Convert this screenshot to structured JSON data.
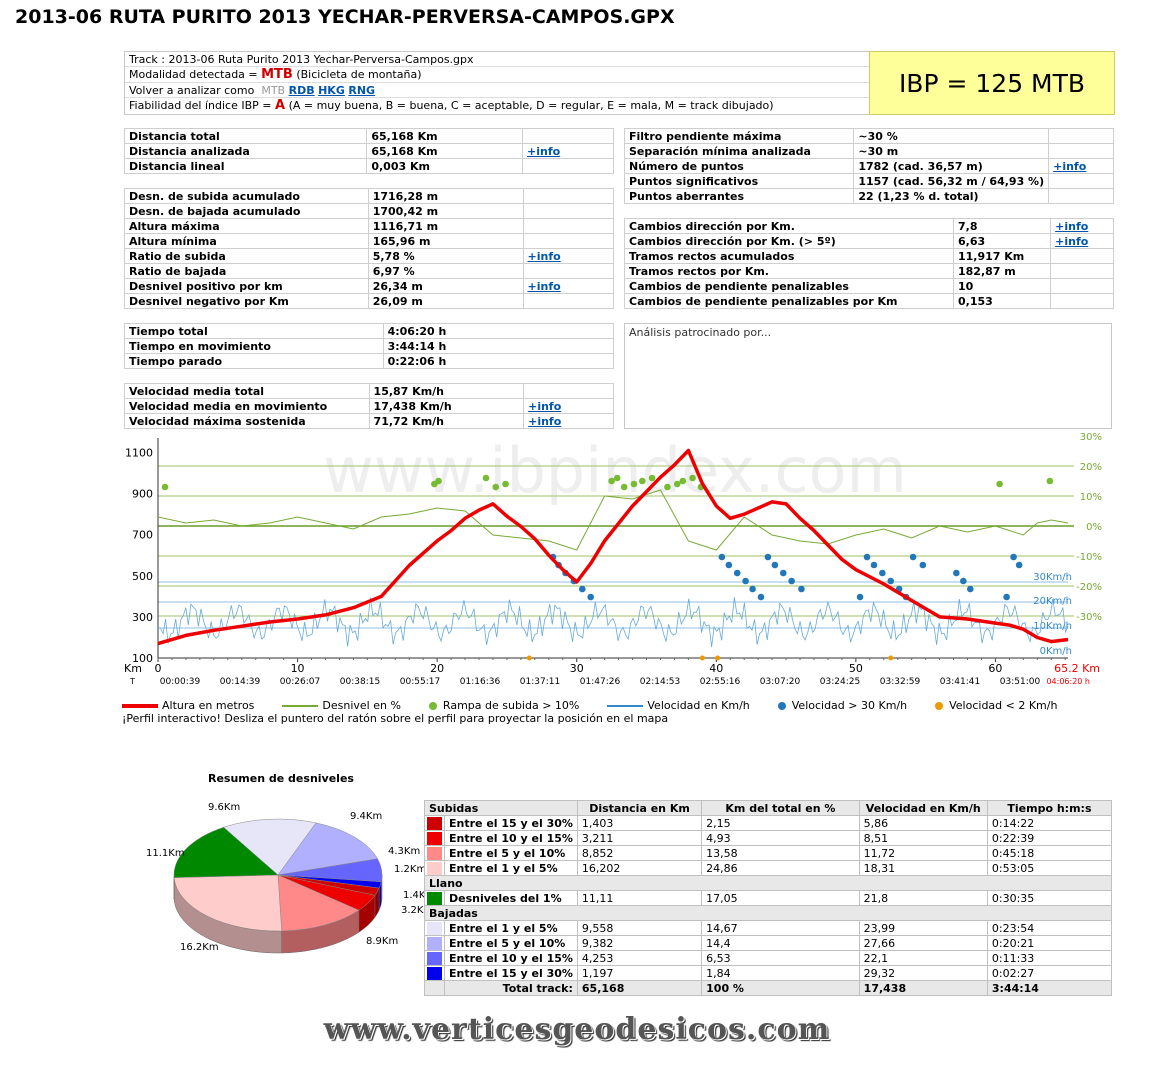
{
  "title": "2013-06 RUTA PURITO 2013 YECHAR-PERVERSA-CAMPOS.GPX",
  "track_info": {
    "track_label": "Track : 2013-06 Ruta Purito 2013 Yechar-Perversa-Campos.gpx",
    "modalidad_label": "Modalidad detectada = ",
    "modalidad_value": "MTB",
    "modalidad_desc": "(Bicicleta de montaña)",
    "volver_label": "Volver a analizar como",
    "volver_current": "MTB",
    "volver_links": [
      "RDB",
      "HKG",
      "RNG"
    ],
    "fiabilidad_label": "Fiabilidad del índice IBP = ",
    "fiabilidad_value": "A",
    "fiabilidad_desc": "(A = muy buena, B = buena, C = aceptable, D = regular, E = mala, M = track dibujado)"
  },
  "ibp": "IBP = 125 MTB",
  "more_link": "+info",
  "distance_rows": [
    {
      "label": "Distancia total",
      "value": "65,168 Km",
      "link": ""
    },
    {
      "label": "Distancia analizada",
      "value": "65,168 Km",
      "link": "+info"
    },
    {
      "label": "Distancia lineal",
      "value": "0,003 Km",
      "link": ""
    }
  ],
  "elevation_rows": [
    {
      "label": "Desn. de subida acumulado",
      "value": "1716,28 m",
      "link": ""
    },
    {
      "label": "Desn. de bajada acumulado",
      "value": "1700,42 m",
      "link": ""
    },
    {
      "label": "Altura máxima",
      "value": "1116,71 m",
      "link": ""
    },
    {
      "label": "Altura mínima",
      "value": "165,96 m",
      "link": ""
    },
    {
      "label": "Ratio de subida",
      "value": "5,78 %",
      "link": "+info"
    },
    {
      "label": "Ratio de bajada",
      "value": "6,97 %",
      "link": ""
    },
    {
      "label": "Desnivel positivo por km",
      "value": "26,34 m",
      "link": "+info"
    },
    {
      "label": "Desnivel negativo por Km",
      "value": "26,09 m",
      "link": ""
    }
  ],
  "time_rows": [
    {
      "label": "Tiempo total",
      "value": "4:06:20 h"
    },
    {
      "label": "Tiempo en movimiento",
      "value": "3:44:14 h"
    },
    {
      "label": "Tiempo parado",
      "value": "0:22:06 h"
    }
  ],
  "speed_rows": [
    {
      "label": "Velocidad media total",
      "value": "15,87 Km/h",
      "link": ""
    },
    {
      "label": "Velocidad media en movimiento",
      "value": "17,438 Km/h",
      "link": "+info"
    },
    {
      "label": "Velocidad máxima sostenida",
      "value": "71,72 Km/h",
      "link": "+info"
    }
  ],
  "filter_rows": [
    {
      "label": "Filtro pendiente máxima",
      "value": "~30 %",
      "link": ""
    },
    {
      "label": "Separación mínima analizada",
      "value": "~30 m",
      "link": ""
    },
    {
      "label": "Número de puntos",
      "value": "1782  (cad. 36,57 m)",
      "link": "+info"
    },
    {
      "label": "Puntos significativos",
      "value": "1157  (cad. 56,32 m / 64,93 %)",
      "link": ""
    },
    {
      "label": "Puntos aberrantes",
      "value": "22  (1,23 % d. total)",
      "link": ""
    }
  ],
  "direction_rows": [
    {
      "label": "Cambios dirección por Km.",
      "value": "7,8",
      "link": "+info"
    },
    {
      "label": "Cambios dirección por Km. (> 5º)",
      "value": "6,63",
      "link": "+info"
    },
    {
      "label": "Tramos rectos acumulados",
      "value": "11,917 Km",
      "link": ""
    },
    {
      "label": "Tramos rectos por Km.",
      "value": "182,87 m",
      "link": ""
    },
    {
      "label": "Cambios de pendiente penalizables",
      "value": "10",
      "link": ""
    },
    {
      "label": "Cambios de pendiente penalizables por Km",
      "value": "0,153",
      "link": ""
    }
  ],
  "sponsor": "Análisis patrocinado por...",
  "profile": {
    "watermark": "www.ibpindex.com",
    "km_label": "Km",
    "t_label": "T",
    "km_end": "65.2 Km",
    "time_end": "04:06:20 h",
    "note": "¡Perfil interactivo! Desliza el puntero del ratón sobre el perfil para proyectar la posición en el mapa",
    "legend": [
      {
        "label": "Altura en metros",
        "color": "#ee0000",
        "kind": "line"
      },
      {
        "label": "Desnivel en %",
        "color": "#77aa33",
        "kind": "line"
      },
      {
        "label": "Rampa de subida > 10%",
        "color": "#77bb33",
        "kind": "dot"
      },
      {
        "label": "Velocidad en Km/h",
        "color": "#3388cc",
        "kind": "line"
      },
      {
        "label": "Velocidad > 30 Km/h",
        "color": "#2277bb",
        "kind": "dot"
      },
      {
        "label": "Velocidad < 2 Km/h",
        "color": "#ee9900",
        "kind": "dot"
      }
    ]
  },
  "pie": {
    "title": "Resumen de desniveles",
    "labels": [
      "9.6Km",
      "9.4Km",
      "4.3Km",
      "1.2Km",
      "1.4Km",
      "3.2Km",
      "8.9Km",
      "16.2Km",
      "11.1Km"
    ]
  },
  "summary": {
    "headers": [
      "Subidas",
      "Distancia en Km",
      "Km del total en %",
      "Velocidad en Km/h",
      "Tiempo h:m:s"
    ],
    "subidas": [
      {
        "label": "Entre el 15 y el 30%",
        "color": "#cc0000",
        "d": "1,403",
        "p": "2,15",
        "v": "5,86",
        "t": "0:14:22"
      },
      {
        "label": "Entre el 10 y el 15%",
        "color": "#ee0000",
        "d": "3,211",
        "p": "4,93",
        "v": "8,51",
        "t": "0:22:39"
      },
      {
        "label": "Entre el 5 y el 10%",
        "color": "#ff8888",
        "d": "8,852",
        "p": "13,58",
        "v": "11,72",
        "t": "0:45:18"
      },
      {
        "label": "Entre el 1 y el 5%",
        "color": "#ffcccc",
        "d": "16,202",
        "p": "24,86",
        "v": "18,31",
        "t": "0:53:05"
      }
    ],
    "llano_label": "Llano",
    "llano": [
      {
        "label": "Desniveles del 1%",
        "color": "#008800",
        "d": "11,11",
        "p": "17,05",
        "v": "21,8",
        "t": "0:30:35"
      }
    ],
    "bajadas_label": "Bajadas",
    "bajadas": [
      {
        "label": "Entre el 1 y el 5%",
        "color": "#e6e6f8",
        "d": "9,558",
        "p": "14,67",
        "v": "23,99",
        "t": "0:23:54"
      },
      {
        "label": "Entre el 5 y el 10%",
        "color": "#b0b0ff",
        "d": "9,382",
        "p": "14,4",
        "v": "27,66",
        "t": "0:20:21"
      },
      {
        "label": "Entre el 10 y el 15%",
        "color": "#6666ff",
        "d": "4,253",
        "p": "6,53",
        "v": "22,1",
        "t": "0:11:33"
      },
      {
        "label": "Entre el 15 y el 30%",
        "color": "#0000ee",
        "d": "1,197",
        "p": "1,84",
        "v": "29,32",
        "t": "0:02:27"
      }
    ],
    "total": {
      "label": "Total track:",
      "d": "65,168",
      "p": "100 %",
      "v": "17,438",
      "t": "3:44:14"
    }
  },
  "footer": "www.verticesgeodesicos.com",
  "chart_data": {
    "type": "line",
    "title": "",
    "xlabel": "Km",
    "ylabel": "",
    "xlim": [
      0,
      65.2
    ],
    "ylim": [
      100,
      1200
    ],
    "y2lim": [
      -30,
      30
    ],
    "x_ticks": [
      0,
      10,
      20,
      30,
      40,
      50,
      60
    ],
    "y_ticks": [
      100,
      300,
      500,
      700,
      900,
      1100
    ],
    "y2_ticks": [
      "30%",
      "20%",
      "10%",
      "0%",
      "-10%",
      "-20%",
      "-30%"
    ],
    "speed_ref_lines": [
      "30Km/h",
      "20Km/h",
      "10Km/h",
      "0Km/h"
    ],
    "time_ticks": [
      "00:00:39",
      "00:14:39",
      "00:26:07",
      "00:38:15",
      "00:55:17",
      "01:16:36",
      "01:37:11",
      "01:47:26",
      "02:14:53",
      "02:55:16",
      "03:07:20",
      "03:24:25",
      "03:32:59",
      "03:41:41",
      "03:51:00"
    ],
    "series": [
      {
        "name": "Altura en metros",
        "x": [
          0,
          2,
          4,
          6,
          8,
          10,
          12,
          14,
          16,
          18,
          20,
          21,
          22,
          23,
          24,
          25,
          26,
          27,
          28,
          29,
          30,
          31,
          32,
          34,
          36,
          37,
          38,
          39,
          40,
          41,
          42,
          44,
          45,
          46,
          47,
          48,
          49,
          50,
          52,
          54,
          56,
          58,
          60,
          61,
          62,
          63,
          64,
          65.2
        ],
        "y": [
          170,
          210,
          235,
          255,
          275,
          290,
          310,
          345,
          400,
          550,
          670,
          720,
          780,
          820,
          850,
          790,
          740,
          680,
          600,
          530,
          470,
          560,
          670,
          840,
          980,
          1040,
          1110,
          950,
          840,
          780,
          800,
          860,
          850,
          780,
          720,
          650,
          580,
          530,
          460,
          380,
          300,
          290,
          270,
          260,
          240,
          200,
          180,
          190
        ]
      },
      {
        "name": "Desnivel en %",
        "x": [
          0,
          1,
          2,
          4,
          6,
          8,
          10,
          12,
          14,
          16,
          18,
          20,
          22,
          24,
          26,
          28,
          30,
          32,
          34,
          36,
          38,
          40,
          42,
          44,
          46,
          48,
          50,
          52,
          54,
          56,
          58,
          60,
          62,
          63,
          64,
          65.2
        ],
        "y": [
          3,
          2,
          1,
          2,
          0,
          1,
          3,
          1,
          -1,
          3,
          4,
          6,
          5,
          -3,
          -4,
          -5,
          -8,
          10,
          9,
          12,
          -5,
          -8,
          3,
          -3,
          -5,
          -6,
          -3,
          -1,
          -4,
          0,
          -2,
          0,
          -3,
          1,
          2,
          1
        ]
      }
    ],
    "markers": {
      "rampa_mayor_10_km": [
        0.5,
        19.8,
        20.1,
        23.5,
        24.2,
        24.9,
        32.5,
        32.9,
        33.4,
        34.1,
        34.7,
        35.4,
        36.5,
        37.2,
        37.6,
        38.3,
        38.9,
        60.3,
        63.9
      ],
      "velocidad_mayor_30_km": [
        28.3,
        28.7,
        29.2,
        29.8,
        30.4,
        31.0,
        40.4,
        40.9,
        41.5,
        42.1,
        42.6,
        43.2,
        43.7,
        44.2,
        44.8,
        45.4,
        46.1,
        50.3,
        50.8,
        51.3,
        51.9,
        52.5,
        53.1,
        53.6,
        54.1,
        54.8,
        57.2,
        57.7,
        58.2,
        60.8,
        61.3,
        61.7
      ],
      "velocidad_menor_2_km": [
        26.6,
        39.0,
        40.1,
        52.5
      ]
    }
  }
}
